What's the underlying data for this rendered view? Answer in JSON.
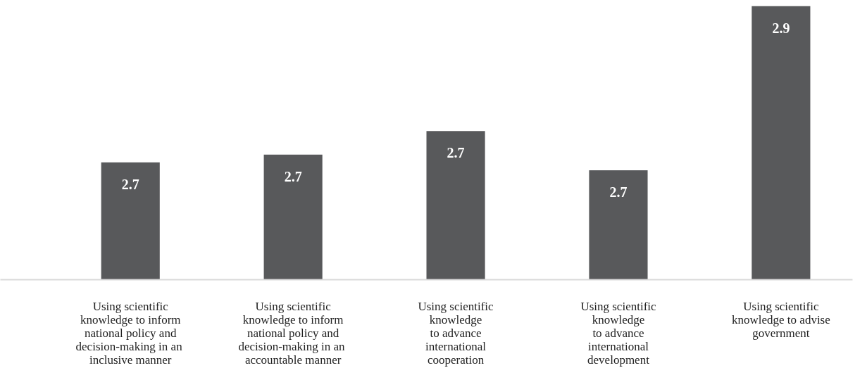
{
  "chart_data": {
    "type": "bar",
    "ylim": [
      2.55,
      2.9
    ],
    "categories": [
      "Using scientific\nknowledge to inform\nnational policy and\ndecision-making in  an\ninclusive manner",
      "Using scientific\nknowledge to inform\nnational policy and\ndecision-making in  an\naccountable manner",
      "Using scientific\nknowledge\nto advance\ninternational\ncooperation",
      "Using scientific\nknowledge\nto advance\ninternational\ndevelopment",
      "Using scientific\nknowledge to advise\ngovernment"
    ],
    "values": [
      2.7,
      2.71,
      2.74,
      2.69,
      2.9
    ],
    "value_labels": [
      "2.7",
      "2.7",
      "2.7",
      "2.7",
      "2.9"
    ],
    "color": "#58595b",
    "grid": false
  }
}
